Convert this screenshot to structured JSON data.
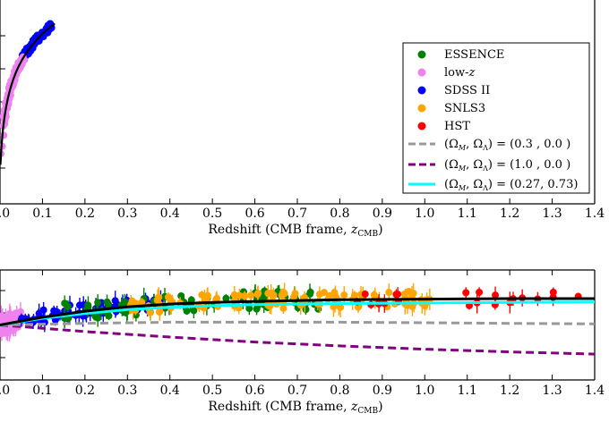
{
  "chart_data": [
    {
      "type": "scatter",
      "panel": "top",
      "xlabel": "Redshift (CMB frame, z_CMB)",
      "xlim": [
        0.0,
        1.4
      ],
      "x_ticks": [
        "0.0",
        "0.1",
        "0.2",
        "0.3",
        "0.4",
        "0.5",
        "0.6",
        "0.7",
        "0.8",
        "0.9",
        "1.0",
        "1.1",
        "1.2",
        "1.3",
        "1.4"
      ],
      "legend_position": "right",
      "series": [
        {
          "name": "ESSENCE",
          "color": "#008000",
          "marker": "circle"
        },
        {
          "name": "low-z",
          "color": "#ee82ee",
          "marker": "circle"
        },
        {
          "name": "SDSS II",
          "color": "#0000ff",
          "marker": "circle"
        },
        {
          "name": "SNLS3",
          "color": "#ffa500",
          "marker": "circle"
        },
        {
          "name": "HST",
          "color": "#ff0000",
          "marker": "circle"
        }
      ],
      "models": [
        {
          "name": "(Ω_M, Ω_Λ) = (0.3 , 0.0 )",
          "color": "#999999",
          "style": "dashed"
        },
        {
          "name": "(Ω_M, Ω_Λ) = (1.0 , 0.0 )",
          "color": "#800080",
          "style": "dashed"
        },
        {
          "name": "(Ω_M, Ω_Λ) = (0.27, 0.73)",
          "color": "#00ffff",
          "style": "solid"
        }
      ],
      "visible_points": [
        {
          "series": "low-z",
          "x": [
            0.01,
            0.012,
            0.015,
            0.018,
            0.02,
            0.023,
            0.025,
            0.028,
            0.03,
            0.033,
            0.036,
            0.04,
            0.045,
            0.05
          ]
        },
        {
          "series": "SDSS II",
          "x": [
            0.055,
            0.06,
            0.065,
            0.07,
            0.075,
            0.08,
            0.085,
            0.09,
            0.1,
            0.11,
            0.115,
            0.12
          ]
        }
      ]
    },
    {
      "type": "scatter",
      "panel": "bottom",
      "xlabel": "Redshift (CMB frame, z_CMB)",
      "xlim": [
        0.0,
        1.4
      ],
      "x_ticks": [
        "0.0",
        "0.1",
        "0.2",
        "0.3",
        "0.4",
        "0.5",
        "0.6",
        "0.7",
        "0.8",
        "0.9",
        "1.0",
        "1.1",
        "1.2",
        "1.3",
        "1.4"
      ],
      "ylim": [
        -1.0,
        1.0
      ],
      "model_curves": [
        {
          "name": "(0.27, 0.73)",
          "color": "#000000",
          "x": [
            0.0,
            0.1,
            0.2,
            0.3,
            0.4,
            0.5,
            0.6,
            0.8,
            1.0,
            1.2,
            1.4
          ],
          "y": [
            0.0,
            0.14,
            0.25,
            0.33,
            0.38,
            0.41,
            0.43,
            0.46,
            0.47,
            0.48,
            0.48
          ]
        },
        {
          "name": "(0.27, 0.73) cyan",
          "color": "#00ffff",
          "x": [
            0.0,
            0.1,
            0.2,
            0.3,
            0.4,
            0.5,
            0.6,
            0.8,
            1.0,
            1.2,
            1.4
          ],
          "y": [
            0.0,
            0.12,
            0.21,
            0.28,
            0.32,
            0.35,
            0.37,
            0.39,
            0.4,
            0.41,
            0.42
          ]
        },
        {
          "name": "(0.3, 0.0)",
          "color": "#999999",
          "x": [
            0.0,
            0.2,
            0.4,
            0.6,
            0.8,
            1.0,
            1.2,
            1.4
          ],
          "y": [
            0.0,
            0.03,
            0.05,
            0.05,
            0.05,
            0.04,
            0.03,
            0.02
          ]
        },
        {
          "name": "(1.0, 0.0)",
          "color": "#800080",
          "x": [
            0.0,
            0.2,
            0.4,
            0.6,
            0.8,
            1.0,
            1.2,
            1.4
          ],
          "y": [
            0.0,
            -0.12,
            -0.22,
            -0.31,
            -0.38,
            -0.44,
            -0.49,
            -0.53
          ]
        }
      ]
    }
  ],
  "labels": {
    "legend_essence": "ESSENCE",
    "legend_lowz_text": "low-",
    "legend_lowz_z": "z",
    "legend_sdss": "SDSS II",
    "legend_snls": "SNLS3",
    "legend_hst": "HST",
    "legend_m1": "(Ω",
    "legend_m1_sub1": "M",
    "legend_m1_mid": ", Ω",
    "legend_m1_sub2": "Λ",
    "legend_m1_val": ") = (0.3  , 0.0  )",
    "legend_m2_val": ") = (1.0  , 0.0  )",
    "legend_m3_val": ") = (0.27, 0.73)",
    "xlabel_main": "Redshift (CMB frame, ",
    "xlabel_z": "z",
    "xlabel_sub": "CMB",
    "xlabel_end": ")"
  }
}
